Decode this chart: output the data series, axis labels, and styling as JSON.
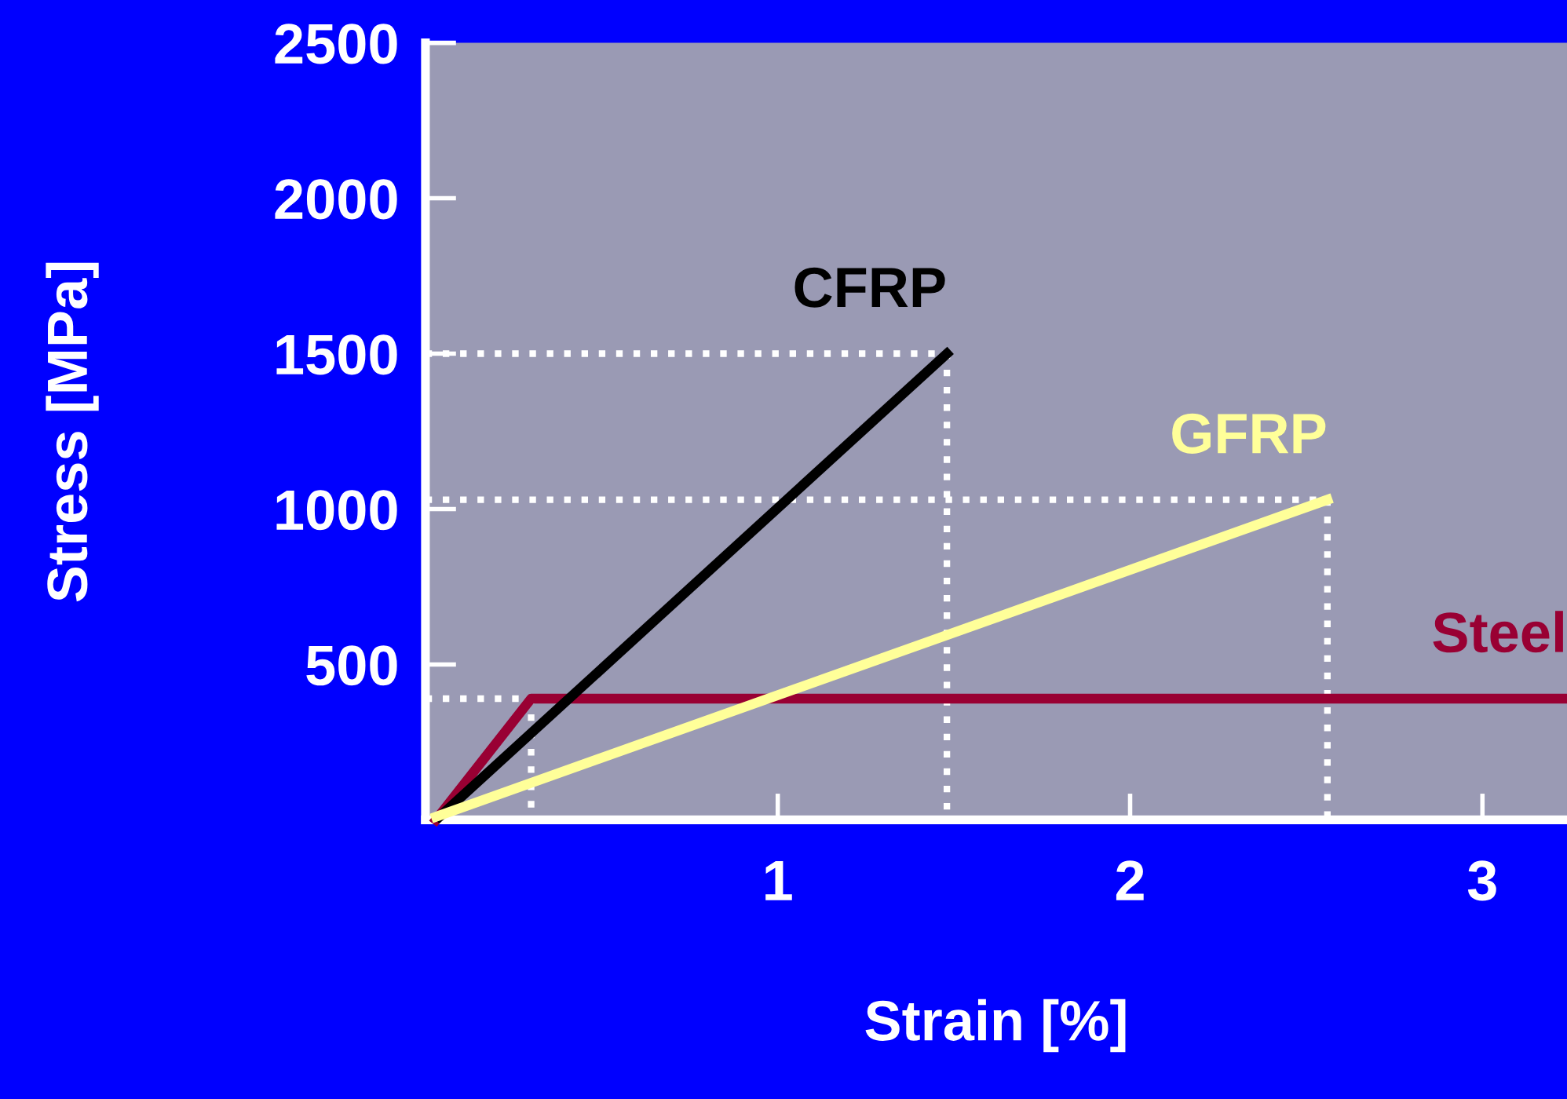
{
  "chart_data": {
    "type": "line",
    "xlabel": "Strain [%]",
    "ylabel": "Stress [MPa]",
    "xlim": [
      0,
      3.24
    ],
    "ylim": [
      0,
      2500
    ],
    "xticks": [
      1,
      2,
      3
    ],
    "yticks": [
      {
        "value": 0,
        "label": null
      },
      500,
      1000,
      1500,
      2000,
      2500
    ],
    "grid": false,
    "legend": false,
    "marker": "none",
    "series": [
      {
        "x": [
          0,
          0.3,
          0.3
        ],
        "values": [
          390,
          390,
          0
        ],
        "color": "#ffffff",
        "line_style": "dotted"
      },
      {
        "x": [
          0,
          1.48,
          1.48
        ],
        "values": [
          1500,
          1500,
          0
        ],
        "color": "#ffffff",
        "line_style": "dotted"
      },
      {
        "x": [
          0,
          2.56,
          2.56
        ],
        "values": [
          1030,
          1030,
          0
        ],
        "color": "#ffffff",
        "line_style": "dotted"
      },
      {
        "name": "Steel",
        "x": [
          0.03,
          0.3,
          3.24
        ],
        "values": [
          0,
          390,
          390
        ],
        "color": "#990033",
        "line_style": "solid"
      },
      {
        "name": "CFRP",
        "x": [
          0.04,
          1.48
        ],
        "values": [
          10,
          1500
        ],
        "color": "#000000",
        "line_style": "solid"
      },
      {
        "name": "GFRP",
        "x": [
          0.03,
          2.56
        ],
        "values": [
          10,
          1030
        ],
        "color": "#ffff99",
        "line_style": "solid"
      }
    ]
  }
}
